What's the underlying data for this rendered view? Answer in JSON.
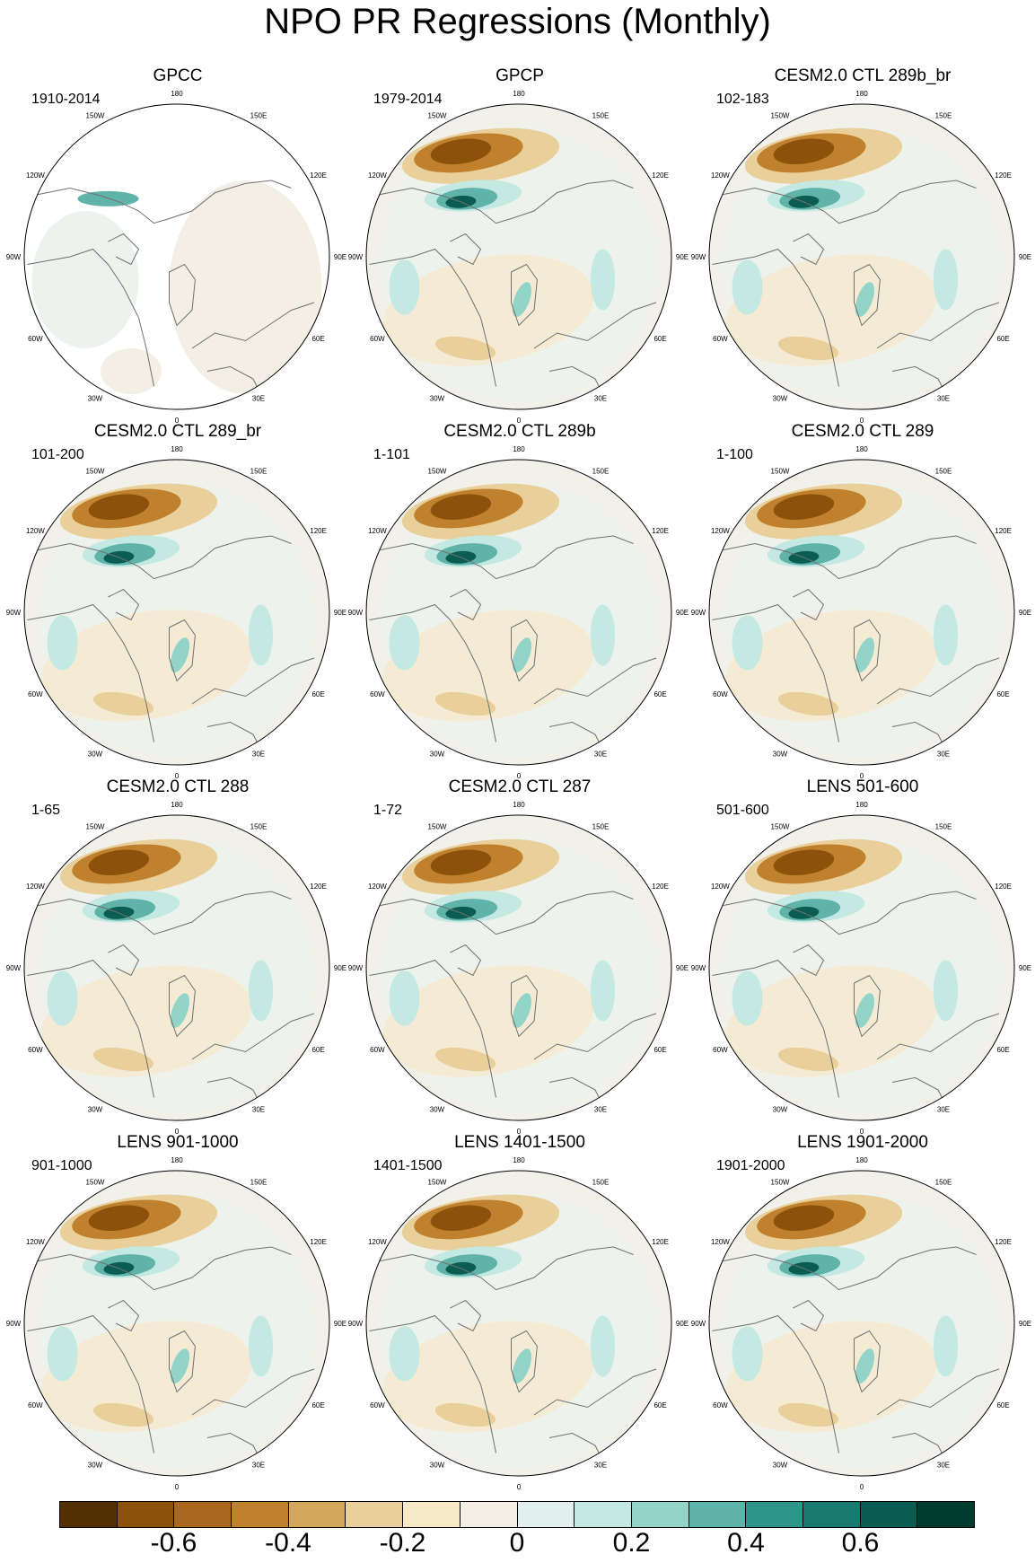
{
  "title": "NPO PR Regressions (Monthly)",
  "longitude_labels": [
    "180",
    "150E",
    "120E",
    "90E",
    "60E",
    "30E",
    "0",
    "30W",
    "60W",
    "90W",
    "120W",
    "150W"
  ],
  "panels": [
    {
      "title": "GPCC",
      "period": "1910-2014",
      "pattern": "gpcc"
    },
    {
      "title": "GPCP",
      "period": "1979-2014",
      "pattern": "model"
    },
    {
      "title": "CESM2.0 CTL 289b_br",
      "period": "102-183",
      "pattern": "model"
    },
    {
      "title": "CESM2.0 CTL 289_br",
      "period": "101-200",
      "pattern": "model"
    },
    {
      "title": "CESM2.0 CTL 289b",
      "period": "1-101",
      "pattern": "model"
    },
    {
      "title": "CESM2.0 CTL 289",
      "period": "1-100",
      "pattern": "model"
    },
    {
      "title": "CESM2.0 CTL 288",
      "period": "1-65",
      "pattern": "model"
    },
    {
      "title": "CESM2.0 CTL 287",
      "period": "1-72",
      "pattern": "model"
    },
    {
      "title": "LENS 501-600",
      "period": "501-600",
      "pattern": "model"
    },
    {
      "title": "LENS 901-1000",
      "period": "901-1000",
      "pattern": "model"
    },
    {
      "title": "LENS 1401-1500",
      "period": "1401-1500",
      "pattern": "model"
    },
    {
      "title": "LENS 1901-2000",
      "period": "1901-2000",
      "pattern": "model"
    }
  ],
  "colorbar": {
    "colors": [
      "#543005",
      "#8c510a",
      "#a9681e",
      "#bf812d",
      "#d3a85c",
      "#e9cf99",
      "#f5e9c8",
      "#f4efe4",
      "#e1efee",
      "#c3e9e2",
      "#93d4c8",
      "#5fb3a8",
      "#2f948a",
      "#1b7a70",
      "#0b5d53",
      "#003c30"
    ],
    "labels": [
      "-0.6",
      "-0.4",
      "-0.2",
      "0",
      "0.2",
      "0.4",
      "0.6"
    ],
    "label_boundary_index": [
      2,
      4,
      6,
      8,
      10,
      12,
      14
    ]
  }
}
